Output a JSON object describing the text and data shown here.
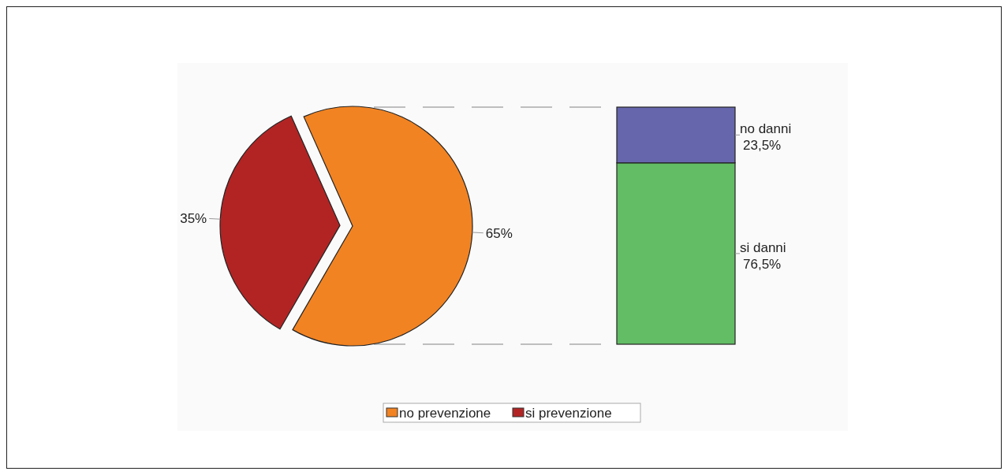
{
  "chart_data": [
    {
      "type": "pie",
      "categories": [
        "no prevenzione",
        "si prevenzione"
      ],
      "values": [
        65,
        35
      ],
      "colors": [
        "#f28322",
        "#b22424"
      ],
      "value_labels": [
        "65%",
        "35%"
      ],
      "legend": "bottom"
    },
    {
      "type": "bar",
      "stacked": true,
      "categories": [
        null
      ],
      "series": [
        {
          "name": "si danni",
          "color": "#62bd64",
          "values": [
            76.5
          ],
          "value_labels": [
            "76,5%"
          ]
        },
        {
          "name": "no danni",
          "color": "#6666ad",
          "values": [
            23.5
          ],
          "value_labels": [
            "23,5%"
          ]
        }
      ]
    }
  ]
}
